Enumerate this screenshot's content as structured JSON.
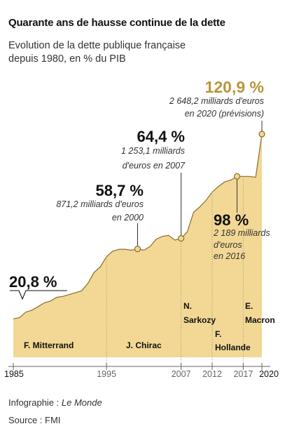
{
  "header": {
    "title": "Quarante ans de hausse continue de la dette",
    "subtitle_line1": "Evolution de la dette publique française",
    "subtitle_line2": "depuis 1980, en % du PIB"
  },
  "footer": {
    "credit_prefix": "Infographie : ",
    "credit_source": "Le Monde",
    "source": "Source : FMI"
  },
  "colors": {
    "area_fill": "#f2d894",
    "line": "#8a6d2c",
    "highlight": "#b8963a",
    "dotted": "#b3a27a"
  },
  "chart_data": {
    "type": "area",
    "title": "Quarante ans de hausse continue de la dette",
    "subtitle": "Evolution de la dette publique française depuis 1980, en % du PIB",
    "xlabel": "",
    "ylabel": "",
    "x": [
      1980,
      1981,
      1982,
      1983,
      1984,
      1985,
      1986,
      1987,
      1988,
      1989,
      1990,
      1991,
      1992,
      1993,
      1994,
      1995,
      1996,
      1997,
      1998,
      1999,
      2000,
      2001,
      2002,
      2003,
      2004,
      2005,
      2006,
      2007,
      2008,
      2009,
      2010,
      2011,
      2012,
      2013,
      2014,
      2015,
      2016,
      2017,
      2018,
      2019,
      2020
    ],
    "values": [
      20.8,
      21.5,
      24.5,
      25.5,
      27.5,
      29.5,
      30.5,
      32.5,
      33,
      34,
      35,
      36,
      40,
      46,
      49,
      54.5,
      57.5,
      58.5,
      58.5,
      58,
      58.7,
      58,
      60,
      64,
      65.5,
      66,
      63.5,
      64.4,
      68,
      78.5,
      81.5,
      85,
      89.5,
      92.5,
      95,
      96,
      98,
      98,
      98,
      97.5,
      120.9
    ],
    "xticks": [
      "1985",
      "1995",
      "2007",
      "2012",
      "2017",
      "2020"
    ],
    "presidents": [
      {
        "name": "F. Mitterrand",
        "start": 1981,
        "end": 1995
      },
      {
        "name": "J. Chirac",
        "start": 1995,
        "end": 2007
      },
      {
        "name": "N. Sarkozy",
        "start": 2007,
        "end": 2012
      },
      {
        "name": "F. Hollande",
        "start": 2012,
        "end": 2017
      },
      {
        "name": "E. Macron",
        "start": 2017,
        "end": 2020
      }
    ],
    "annotations": [
      {
        "year": 1980,
        "value": "20,8 %",
        "detail_lines": []
      },
      {
        "year": 2000,
        "value": "58,7 %",
        "detail_lines": [
          "871,2 milliards d'euros",
          "en 2000"
        ]
      },
      {
        "year": 2007,
        "value": "64,4 %",
        "detail_lines": [
          "1 253,1 milliards",
          "d'euros en 2007"
        ]
      },
      {
        "year": 2016,
        "value": "98 %",
        "detail_lines": [
          "2 189 milliards",
          "d'euros",
          "en 2016"
        ]
      },
      {
        "year": 2020,
        "value": "120,9 %",
        "detail_lines": [
          "2 648,2 milliards d'euros",
          "en 2020 (prévisions)"
        ]
      }
    ],
    "ylim": [
      0,
      125
    ],
    "grid": false,
    "legend": "none"
  }
}
